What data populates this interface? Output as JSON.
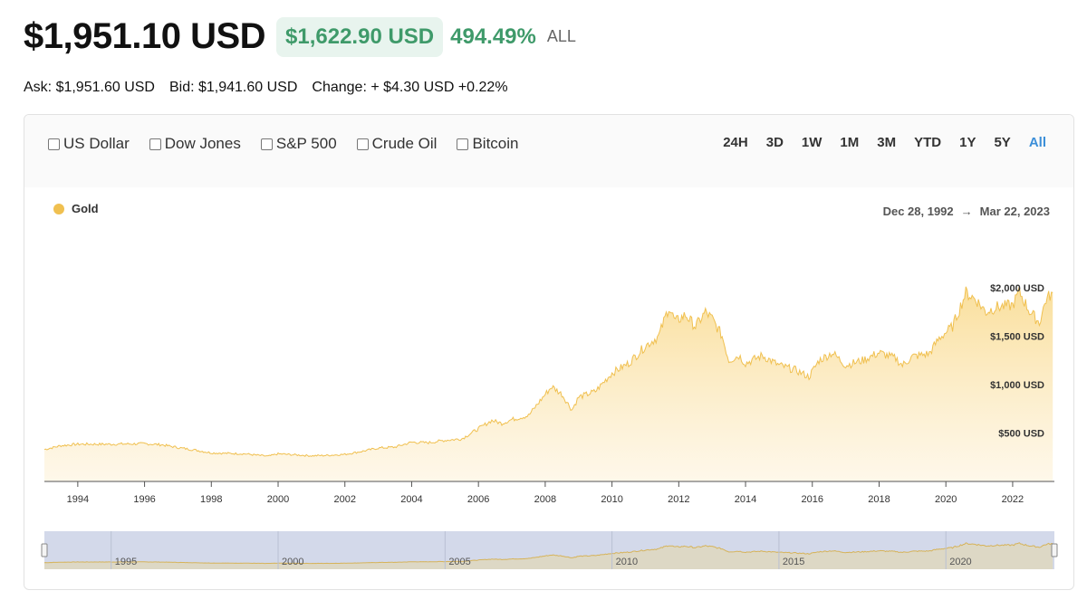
{
  "header": {
    "price": "$1,951.10 USD",
    "change_value": "$1,622.90 USD",
    "change_percent": "494.49%",
    "period": "ALL"
  },
  "quotes": {
    "ask": "Ask: $1,951.60 USD",
    "bid": "Bid: $1,941.60 USD",
    "change": "Change: + $4.30 USD +0.22%"
  },
  "compare_options": [
    {
      "label": "US Dollar",
      "checked": false
    },
    {
      "label": "Dow Jones",
      "checked": false
    },
    {
      "label": "S&P 500",
      "checked": false
    },
    {
      "label": "Crude Oil",
      "checked": false
    },
    {
      "label": "Bitcoin",
      "checked": false
    }
  ],
  "ranges": [
    {
      "label": "24H",
      "active": false
    },
    {
      "label": "3D",
      "active": false
    },
    {
      "label": "1W",
      "active": false
    },
    {
      "label": "1M",
      "active": false
    },
    {
      "label": "3M",
      "active": false
    },
    {
      "label": "YTD",
      "active": false
    },
    {
      "label": "1Y",
      "active": false
    },
    {
      "label": "5Y",
      "active": false
    },
    {
      "label": "All",
      "active": true
    }
  ],
  "legend": {
    "label": "Gold",
    "color": "#f0c050"
  },
  "date_range": {
    "start": "Dec 28, 1992",
    "arrow": "→",
    "end": "Mar 22, 2023"
  },
  "colors": {
    "accent": "#3b8ed8",
    "positive": "#3f9a6a",
    "gold": "#f0c050",
    "navigator": "#d3d9ea"
  },
  "chart_data": {
    "type": "area",
    "series": [
      {
        "name": "Gold",
        "x": [
          1993.0,
          1993.5,
          1994.0,
          1995.0,
          1996.0,
          1996.5,
          1997.0,
          1997.5,
          1998.0,
          1999.0,
          1999.7,
          2000.0,
          2000.5,
          2001.0,
          2001.5,
          2002.0,
          2002.5,
          2003.0,
          2003.5,
          2004.0,
          2004.5,
          2005.0,
          2005.5,
          2006.0,
          2006.4,
          2006.7,
          2007.0,
          2007.5,
          2008.0,
          2008.2,
          2008.5,
          2008.8,
          2009.0,
          2009.5,
          2010.0,
          2010.5,
          2011.0,
          2011.4,
          2011.7,
          2011.9,
          2012.2,
          2012.5,
          2012.8,
          2013.0,
          2013.3,
          2013.5,
          2013.8,
          2014.0,
          2014.5,
          2015.0,
          2015.5,
          2015.9,
          2016.2,
          2016.6,
          2017.0,
          2017.5,
          2018.0,
          2018.5,
          2018.7,
          2019.0,
          2019.5,
          2019.8,
          2020.2,
          2020.6,
          2020.9,
          2021.2,
          2021.5,
          2022.0,
          2022.2,
          2022.5,
          2022.8,
          2023.0,
          2023.2
        ],
        "values": [
          330,
          370,
          385,
          385,
          390,
          380,
          350,
          325,
          295,
          285,
          260,
          285,
          275,
          265,
          270,
          280,
          310,
          345,
          355,
          405,
          400,
          425,
          440,
          545,
          630,
          600,
          640,
          680,
          900,
          980,
          900,
          740,
          870,
          930,
          1120,
          1220,
          1400,
          1500,
          1800,
          1650,
          1720,
          1600,
          1750,
          1680,
          1500,
          1250,
          1300,
          1220,
          1300,
          1200,
          1150,
          1080,
          1250,
          1330,
          1200,
          1250,
          1330,
          1270,
          1200,
          1290,
          1320,
          1480,
          1600,
          1950,
          1880,
          1750,
          1800,
          1820,
          1960,
          1760,
          1640,
          1880,
          1951
        ]
      }
    ],
    "x_ticks": [
      "1994",
      "1996",
      "1998",
      "2000",
      "2002",
      "2004",
      "2006",
      "2008",
      "2010",
      "2012",
      "2014",
      "2016",
      "2018",
      "2020",
      "2022"
    ],
    "y_ticks": [
      "$500 USD",
      "$1,000 USD",
      "$1,500 USD",
      "$2,000 USD"
    ],
    "y_tick_values": [
      500,
      1000,
      1500,
      2000
    ],
    "navigator_ticks": [
      "1995",
      "2000",
      "2005",
      "2010",
      "2015",
      "2020"
    ],
    "xlim": [
      1993.0,
      2023.25
    ],
    "ylim": [
      0,
      2150
    ],
    "grid": false,
    "legend_position": "top-left"
  }
}
